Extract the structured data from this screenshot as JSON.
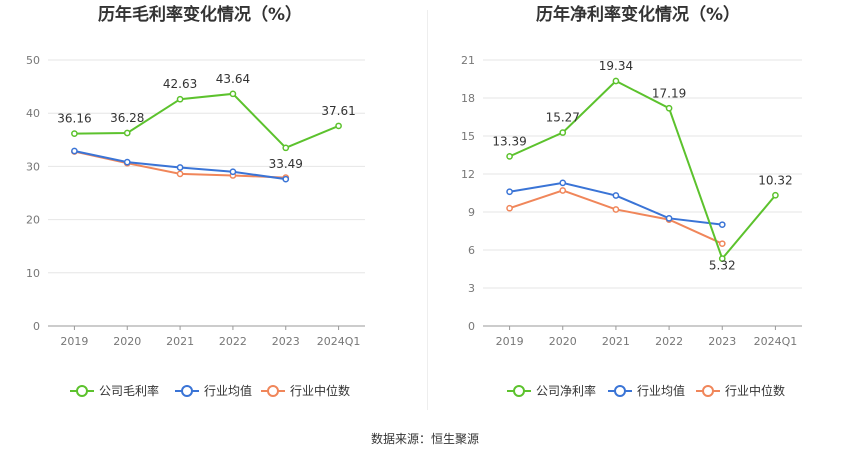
{
  "source": "数据来源：恒生聚源",
  "chart_data": [
    {
      "type": "line",
      "title": "历年毛利率变化情况（%）",
      "categories": [
        "2019",
        "2020",
        "2021",
        "2022",
        "2023",
        "2024Q1"
      ],
      "ylim": [
        0,
        50
      ],
      "yticks": [
        0,
        10,
        20,
        30,
        40,
        50
      ],
      "grid": true,
      "legend_position": "bottom",
      "series": [
        {
          "name": "公司毛利率",
          "color": "#5cc22d",
          "values": [
            36.16,
            36.28,
            42.63,
            43.64,
            33.49,
            37.61
          ],
          "labels": [
            "36.16",
            "36.28",
            "42.63",
            "43.64",
            "33.49",
            "37.61"
          ]
        },
        {
          "name": "行业均值",
          "color": "#3a74d6",
          "values": [
            32.9,
            30.8,
            29.8,
            29.0,
            27.6,
            null
          ]
        },
        {
          "name": "行业中位数",
          "color": "#f0865a",
          "values": [
            32.8,
            30.6,
            28.6,
            28.3,
            27.9,
            null
          ]
        }
      ]
    },
    {
      "type": "line",
      "title": "历年净利率变化情况（%）",
      "categories": [
        "2019",
        "2020",
        "2021",
        "2022",
        "2023",
        "2024Q1"
      ],
      "ylim": [
        0,
        21
      ],
      "yticks": [
        0,
        3,
        6,
        9,
        12,
        15,
        18,
        21
      ],
      "grid": true,
      "legend_position": "bottom",
      "series": [
        {
          "name": "公司净利率",
          "color": "#5cc22d",
          "values": [
            13.39,
            15.27,
            19.34,
            17.19,
            5.32,
            10.32
          ],
          "labels": [
            "13.39",
            "15.27",
            "19.34",
            "17.19",
            "5.32",
            "10.32"
          ]
        },
        {
          "name": "行业均值",
          "color": "#3a74d6",
          "values": [
            10.6,
            11.3,
            10.3,
            8.5,
            8.0,
            null
          ]
        },
        {
          "name": "行业中位数",
          "color": "#f0865a",
          "values": [
            9.3,
            10.7,
            9.2,
            8.4,
            6.5,
            null
          ]
        }
      ]
    }
  ]
}
